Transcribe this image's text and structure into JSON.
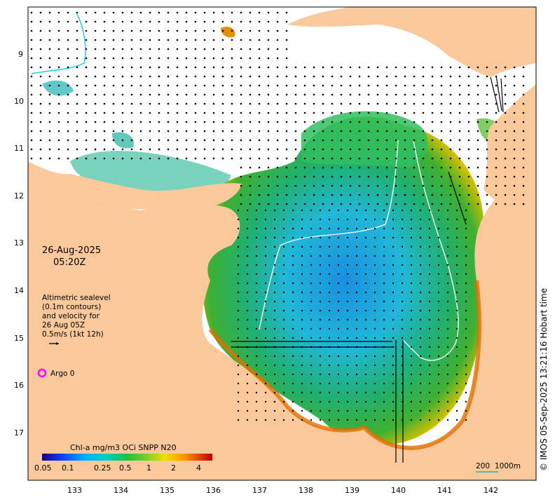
{
  "date_label": "26-Aug-2025",
  "time_label": "05:20Z",
  "legend": {
    "line1": "Altimetric sealevel",
    "line2": "(0.1m contours)",
    "line3": "and velocity for",
    "line4": "26 Aug 05Z",
    "line5": "0.5m/s (1kt 12h)"
  },
  "argo_label": "Argo 0",
  "colorbar": {
    "title": "Chl-a mg/m3 OCi SNPP N20",
    "ticks": [
      "0.05",
      "0.1",
      "0.25",
      "0.5",
      "1",
      "2",
      "4"
    ]
  },
  "scale_bar": {
    "label1": "200",
    "label2": "1000m"
  },
  "credit": "© IMOS 05-Sep-2025 13:21:16 Hobart time",
  "axes": {
    "x_ticks": [
      "133",
      "134",
      "135",
      "136",
      "137",
      "138",
      "139",
      "140",
      "141",
      "142"
    ],
    "y_ticks": [
      "9",
      "10",
      "11",
      "12",
      "13",
      "14",
      "15",
      "16",
      "17"
    ]
  },
  "colors": {
    "land": "#f9c99b",
    "no_data": "#ffffff",
    "argo": "#ff00ff",
    "scale_line": "#40c0c0"
  }
}
